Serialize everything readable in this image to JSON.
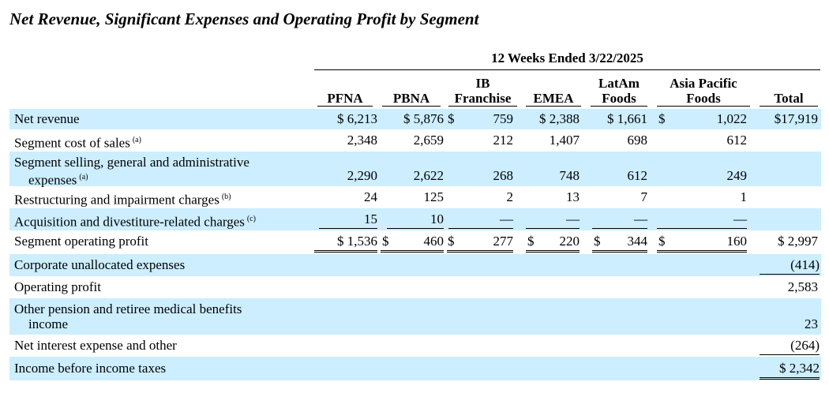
{
  "title": "Net Revenue, Significant Expenses and Operating Profit by Segment",
  "period_header": "12 Weeks Ended 3/22/2025",
  "columns": [
    {
      "line1": "",
      "line2": "PFNA"
    },
    {
      "line1": "",
      "line2": "PBNA"
    },
    {
      "line1": "IB",
      "line2": "Franchise"
    },
    {
      "line1": "",
      "line2": "EMEA"
    },
    {
      "line1": "LatAm",
      "line2": "Foods"
    },
    {
      "line1": "Asia Pacific",
      "line2": "Foods"
    },
    {
      "line1": "",
      "line2": "Total"
    }
  ],
  "rows": [
    {
      "label": "Net revenue",
      "footnote": "",
      "values": [
        "$ 6,213",
        "$ 5,876",
        "759",
        "$ 2,388",
        "$ 1,661",
        "1,022",
        "$17,919"
      ],
      "dollar_ib": "$",
      "dollar_ap": "$"
    },
    {
      "label": "Segment cost of sales",
      "footnote": "(a)",
      "values": [
        "2,348",
        "2,659",
        "212",
        "1,407",
        "698",
        "612",
        ""
      ]
    },
    {
      "label": "Segment selling, general and administrative",
      "label2": "expenses",
      "footnote": "(a)",
      "values": [
        "2,290",
        "2,622",
        "268",
        "748",
        "612",
        "249",
        ""
      ]
    },
    {
      "label": "Restructuring and impairment charges",
      "footnote": "(b)",
      "values": [
        "24",
        "125",
        "2",
        "13",
        "7",
        "1",
        ""
      ]
    },
    {
      "label": "Acquisition and divestiture-related charges",
      "footnote": "(c)",
      "values": [
        "15",
        "10",
        "—",
        "—",
        "—",
        "—",
        ""
      ]
    },
    {
      "label": "Segment operating profit",
      "footnote": "",
      "values": [
        "$ 1,536",
        "460",
        "277",
        "220",
        "344",
        "160",
        "$ 2,997"
      ],
      "dollar_pbna": "$",
      "dollar_ib": "$",
      "dollar_emea": "$",
      "dollar_latam": "$",
      "dollar_ap": "$"
    },
    {
      "label": "Corporate unallocated expenses",
      "footnote": "",
      "values": [
        "",
        "",
        "",
        "",
        "",
        "",
        "(414)"
      ]
    },
    {
      "label": "Operating profit",
      "footnote": "",
      "values": [
        "",
        "",
        "",
        "",
        "",
        "",
        "2,583"
      ]
    },
    {
      "label": "Other pension and retiree medical benefits",
      "label2": "income",
      "footnote": "",
      "values": [
        "",
        "",
        "",
        "",
        "",
        "",
        "23"
      ]
    },
    {
      "label": "Net interest expense and other",
      "footnote": "",
      "values": [
        "",
        "",
        "",
        "",
        "",
        "",
        "(264)"
      ]
    },
    {
      "label": "Income before income taxes",
      "footnote": "",
      "values": [
        "",
        "",
        "",
        "",
        "",
        "",
        "$ 2,342"
      ]
    }
  ]
}
